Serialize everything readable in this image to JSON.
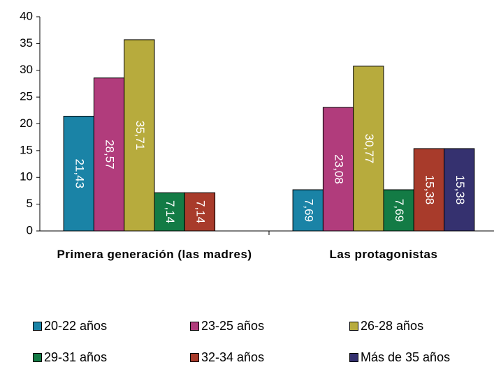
{
  "chart_data": {
    "type": "bar",
    "categories": [
      "Primera generación (las madres)",
      "Las protagonistas"
    ],
    "series": [
      {
        "name": "20-22 años",
        "color": "#1a83a6",
        "values": [
          21.43,
          7.69
        ],
        "value_labels": [
          "21,43",
          "7,69"
        ]
      },
      {
        "name": "23-25 años",
        "color": "#b13c7c",
        "values": [
          28.57,
          23.08
        ],
        "value_labels": [
          "28,57",
          "23,08"
        ]
      },
      {
        "name": "26-28 años",
        "color": "#b7ab3d",
        "values": [
          35.71,
          30.77
        ],
        "value_labels": [
          "35,71",
          "30,77"
        ]
      },
      {
        "name": "29-31 años",
        "color": "#137b45",
        "values": [
          7.14,
          7.69
        ],
        "value_labels": [
          "7,14",
          "7,69"
        ]
      },
      {
        "name": "32-34 años",
        "color": "#a83b2b",
        "values": [
          7.14,
          15.38
        ],
        "value_labels": [
          "7,14",
          "15,38"
        ]
      },
      {
        "name": "Más de 35 años",
        "color": "#35316f",
        "values": [
          null,
          15.38
        ],
        "value_labels": [
          null,
          "15,38"
        ]
      }
    ],
    "ylim": [
      0,
      40
    ],
    "yticks": [
      0,
      5,
      10,
      15,
      20,
      25,
      30,
      35,
      40
    ],
    "grid": false
  }
}
